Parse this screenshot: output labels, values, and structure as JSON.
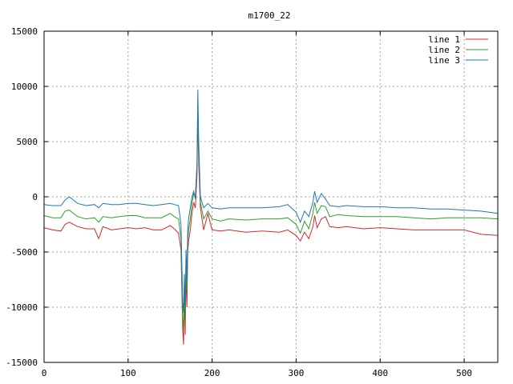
{
  "chart_data": {
    "type": "line",
    "title": "m1700_22",
    "xlim": [
      0,
      540
    ],
    "ylim": [
      -15000,
      15000
    ],
    "x_ticks": [
      0,
      100,
      200,
      300,
      400,
      500
    ],
    "y_ticks": [
      -15000,
      -10000,
      -5000,
      0,
      5000,
      10000,
      15000
    ],
    "grid": true,
    "legend_position": "top-right",
    "series": [
      {
        "name": "line 1",
        "color": "#d62728",
        "x": [
          0,
          10,
          20,
          25,
          30,
          40,
          50,
          60,
          65,
          70,
          80,
          90,
          100,
          110,
          120,
          130,
          140,
          150,
          155,
          160,
          163,
          165,
          166,
          167,
          168,
          169,
          170,
          171,
          172,
          174,
          176,
          178,
          180,
          182,
          183,
          184,
          186,
          190,
          195,
          200,
          210,
          220,
          240,
          260,
          280,
          290,
          300,
          305,
          310,
          315,
          320,
          322,
          325,
          330,
          335,
          340,
          350,
          360,
          380,
          400,
          420,
          440,
          460,
          480,
          500,
          520,
          540
        ],
        "y": [
          -2800,
          -3000,
          -3100,
          -2500,
          -2300,
          -2700,
          -2900,
          -2900,
          -3800,
          -2700,
          -3000,
          -2900,
          -2800,
          -2900,
          -2800,
          -3000,
          -3000,
          -2600,
          -2900,
          -3300,
          -4800,
          -12000,
          -13400,
          -9000,
          -12500,
          -6500,
          -10000,
          -5000,
          -4000,
          -3000,
          -1500,
          -500,
          -1000,
          2000,
          7500,
          3000,
          -1000,
          -3000,
          -1500,
          -3000,
          -3100,
          -3000,
          -3200,
          -3100,
          -3200,
          -3000,
          -3500,
          -4000,
          -3200,
          -3800,
          -2700,
          -1700,
          -2800,
          -2000,
          -1800,
          -2700,
          -2800,
          -2700,
          -2900,
          -2800,
          -2900,
          -3000,
          -3000,
          -3000,
          -3000,
          -3400,
          -3500
        ]
      },
      {
        "name": "line 2",
        "color": "#2ca02c",
        "x": [
          0,
          10,
          20,
          25,
          30,
          40,
          50,
          60,
          65,
          70,
          80,
          90,
          100,
          110,
          120,
          130,
          140,
          150,
          155,
          160,
          163,
          165,
          166,
          167,
          168,
          169,
          170,
          171,
          172,
          174,
          176,
          178,
          180,
          182,
          183,
          184,
          186,
          190,
          195,
          200,
          210,
          220,
          240,
          260,
          280,
          290,
          300,
          305,
          310,
          315,
          320,
          322,
          325,
          330,
          335,
          340,
          350,
          360,
          380,
          400,
          420,
          440,
          460,
          480,
          500,
          520,
          540
        ],
        "y": [
          -1700,
          -1900,
          -1900,
          -1300,
          -1200,
          -1800,
          -2000,
          -1900,
          -2300,
          -1800,
          -1900,
          -1800,
          -1700,
          -1700,
          -1900,
          -1900,
          -1900,
          -1500,
          -1800,
          -2000,
          -3800,
          -11000,
          -12000,
          -8000,
          -11000,
          -5500,
          -8500,
          -4000,
          -3000,
          -2000,
          -600,
          300,
          0,
          3000,
          8500,
          4000,
          -500,
          -2000,
          -1300,
          -2000,
          -2200,
          -2000,
          -2100,
          -2000,
          -2000,
          -1900,
          -2500,
          -3300,
          -2200,
          -2900,
          -1500,
          -500,
          -1500,
          -800,
          -900,
          -1800,
          -1600,
          -1700,
          -1800,
          -1800,
          -1800,
          -1900,
          -2000,
          -1900,
          -1900,
          -1900,
          -2000
        ]
      },
      {
        "name": "line 3",
        "color": "#1f77b4",
        "x": [
          0,
          10,
          20,
          25,
          30,
          40,
          50,
          60,
          65,
          70,
          80,
          90,
          100,
          110,
          120,
          130,
          140,
          150,
          155,
          160,
          163,
          165,
          166,
          167,
          168,
          169,
          170,
          171,
          172,
          174,
          176,
          178,
          180,
          182,
          183,
          184,
          186,
          190,
          195,
          200,
          210,
          220,
          240,
          260,
          280,
          290,
          300,
          305,
          310,
          315,
          320,
          322,
          325,
          330,
          335,
          340,
          350,
          360,
          380,
          400,
          420,
          440,
          460,
          480,
          500,
          520,
          540
        ],
        "y": [
          -700,
          -800,
          -800,
          -300,
          0,
          -600,
          -800,
          -700,
          -1000,
          -600,
          -700,
          -700,
          -600,
          -600,
          -700,
          -800,
          -700,
          -600,
          -700,
          -800,
          -2500,
          -9500,
          -10500,
          -7000,
          -9800,
          -4800,
          -7500,
          -3000,
          -2000,
          -1000,
          0,
          500,
          -200,
          3000,
          9700,
          5000,
          0,
          -1000,
          -600,
          -1000,
          -1100,
          -1000,
          -1000,
          -1000,
          -900,
          -700,
          -1400,
          -2300,
          -1300,
          -1800,
          -500,
          500,
          -500,
          300,
          -200,
          -800,
          -900,
          -800,
          -900,
          -900,
          -1000,
          -1000,
          -1100,
          -1100,
          -1200,
          -1300,
          -1500
        ]
      }
    ]
  }
}
